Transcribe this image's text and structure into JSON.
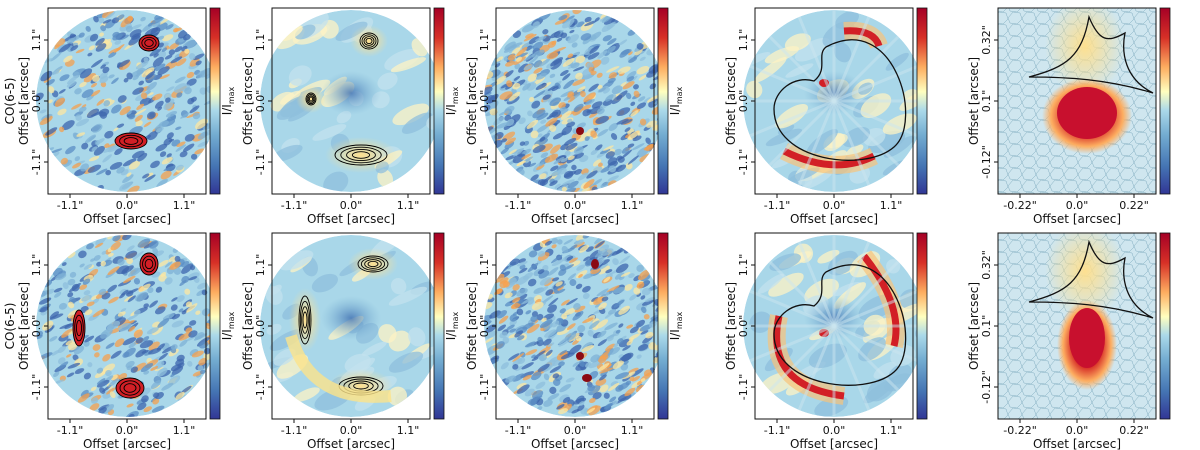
{
  "figure": {
    "rows": [
      {
        "row_label": "CO(6-5)"
      },
      {
        "row_label": "CO(6-5)"
      }
    ],
    "panels": [
      {
        "x_label": "Offset [arcsec]",
        "y_label": "Offset [arcsec]",
        "x_ticks": [
          "-1.1\"",
          "0.0\"",
          "1.1\""
        ],
        "y_ticks": [
          "1.1\"",
          "0.0\"",
          "-1.1\""
        ],
        "colorbar_label": "I/I",
        "colorbar_sub": "max",
        "style": "noisy",
        "caustic": false
      },
      {
        "x_label": "Offset [arcsec]",
        "y_label": "Offset [arcsec]",
        "x_ticks": [
          "-1.1\"",
          "0.0\"",
          "1.1\""
        ],
        "y_ticks": [
          "1.1\"",
          "0.0\"",
          "-1.1\""
        ],
        "colorbar_label": "I/I",
        "colorbar_sub": "max",
        "style": "smooth",
        "caustic": false
      },
      {
        "x_label": "Offset [arcsec]",
        "y_label": "Offset [arcsec]",
        "x_ticks": [
          "-1.1\"",
          "0.0\"",
          "1.1\""
        ],
        "y_ticks": [
          "1.1\"",
          "0.0\"",
          "-1.1\""
        ],
        "colorbar_label": "I/I",
        "colorbar_sub": "max",
        "style": "noise",
        "caustic": false
      },
      {
        "x_label": "Offset [arcsec]",
        "y_label": "Offset [arcsec]",
        "x_ticks": [
          "-1.1\"",
          "0.0\"",
          "1.1\""
        ],
        "y_ticks": [
          "1.1\"",
          "0.0\"",
          "-1.1\""
        ],
        "colorbar_label": "",
        "colorbar_sub": "",
        "style": "model",
        "caustic": true
      },
      {
        "x_label": "Offset [arcsec]",
        "y_label": "Offset [arcsec]",
        "x_ticks": [
          "-0.22\"",
          "0.0\"",
          "0.22\""
        ],
        "y_ticks": [
          "0.32\"",
          "0.1\"",
          "-0.12\""
        ],
        "colorbar_label": "",
        "colorbar_sub": "",
        "style": "source",
        "caustic": true
      }
    ]
  },
  "colors": {
    "background": "#a9d7e9",
    "red": "#d21f26",
    "dark_red": "#8b0a12",
    "orange": "#f5a04e",
    "yellow": "#fde7a0",
    "blue": "#3d66ad",
    "contour": "#000000"
  }
}
